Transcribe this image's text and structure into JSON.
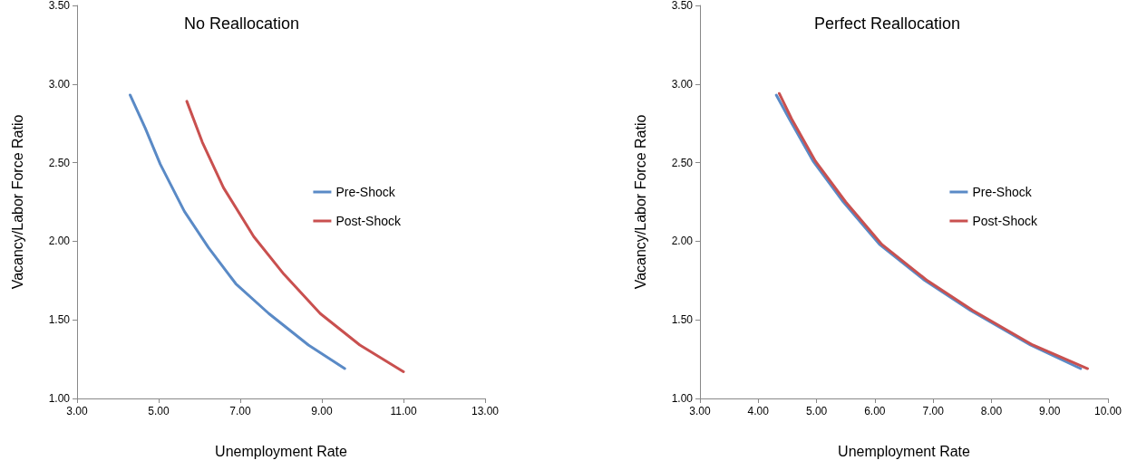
{
  "chart_data": [
    {
      "type": "line",
      "title": "No Reallocation",
      "xlabel": "Unemployment Rate",
      "ylabel": "Vacancy/Labor Force Ratio",
      "xlim": [
        3,
        13
      ],
      "xticks": [
        {
          "value": 3,
          "label": "3.00"
        },
        {
          "value": 5,
          "label": "5.00"
        },
        {
          "value": 7,
          "label": "7.00"
        },
        {
          "value": 9,
          "label": "9.00"
        },
        {
          "value": 11,
          "label": "11.00"
        },
        {
          "value": 13,
          "label": "13.00"
        }
      ],
      "ylim": [
        1,
        3.5
      ],
      "yticks": [
        {
          "value": 1,
          "label": "1.00"
        },
        {
          "value": 1.5,
          "label": "1.50"
        },
        {
          "value": 2,
          "label": "2.00"
        },
        {
          "value": 2.5,
          "label": "2.50"
        },
        {
          "value": 3,
          "label": "3.00"
        },
        {
          "value": 3.5,
          "label": "3.50"
        }
      ],
      "grid": false,
      "legend": "right",
      "marker": "none",
      "line_style": "solid",
      "series": [
        {
          "name": "Pre-Shock",
          "color": "#5a8ac6",
          "x": [
            4.3,
            4.67,
            5.04,
            5.63,
            6.22,
            6.89,
            7.7,
            8.67,
            9.56
          ],
          "values": [
            2.93,
            2.72,
            2.49,
            2.19,
            1.96,
            1.73,
            1.54,
            1.34,
            1.19
          ]
        },
        {
          "name": "Post-Shock",
          "color": "#c9504f",
          "x": [
            5.69,
            6.07,
            6.59,
            7.33,
            8.07,
            8.96,
            9.93,
            11.0
          ],
          "values": [
            2.89,
            2.63,
            2.34,
            2.03,
            1.79,
            1.54,
            1.34,
            1.17
          ]
        }
      ]
    },
    {
      "type": "line",
      "title": "Perfect Reallocation",
      "xlabel": "Unemployment Rate",
      "ylabel": "Vacancy/Labor Force Ratio",
      "xlim": [
        3,
        10
      ],
      "xticks": [
        {
          "value": 3,
          "label": "3.00"
        },
        {
          "value": 4,
          "label": "4.00"
        },
        {
          "value": 5,
          "label": "5.00"
        },
        {
          "value": 6,
          "label": "6.00"
        },
        {
          "value": 7,
          "label": "7.00"
        },
        {
          "value": 8,
          "label": "8.00"
        },
        {
          "value": 9,
          "label": "9.00"
        },
        {
          "value": 10,
          "label": "10.00"
        }
      ],
      "ylim": [
        1,
        3.5
      ],
      "yticks": [
        {
          "value": 1,
          "label": "1.00"
        },
        {
          "value": 1.5,
          "label": "1.50"
        },
        {
          "value": 2,
          "label": "2.00"
        },
        {
          "value": 2.5,
          "label": "2.50"
        },
        {
          "value": 3,
          "label": "3.00"
        },
        {
          "value": 3.5,
          "label": "3.50"
        }
      ],
      "grid": false,
      "legend": "right",
      "marker": "none",
      "line_style": "solid",
      "series": [
        {
          "name": "Pre-Shock",
          "color": "#5a8ac6",
          "x": [
            4.31,
            4.53,
            4.94,
            5.46,
            6.08,
            6.86,
            7.64,
            8.67,
            9.53
          ],
          "values": [
            2.93,
            2.78,
            2.51,
            2.25,
            1.98,
            1.75,
            1.56,
            1.34,
            1.19
          ]
        },
        {
          "name": "Post-Shock",
          "color": "#c9504f",
          "x": [
            4.36,
            4.57,
            4.98,
            5.5,
            6.12,
            6.9,
            7.68,
            8.71,
            9.65
          ],
          "values": [
            2.94,
            2.78,
            2.51,
            2.25,
            1.98,
            1.75,
            1.56,
            1.34,
            1.19
          ]
        }
      ]
    }
  ]
}
